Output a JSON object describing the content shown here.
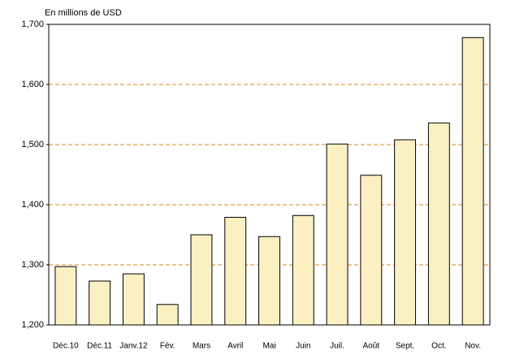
{
  "chart_data": {
    "type": "bar",
    "y_axis_label": "En millions de USD",
    "categories": [
      "Déc.10",
      "Déc.11",
      "Janv.12",
      "Fév.",
      "Mars",
      "Avril",
      "Mai",
      "Juin",
      "Juil.",
      "Août",
      "Sept.",
      "Oct.",
      "Nov."
    ],
    "values": [
      1297,
      1273,
      1285,
      1234,
      1350,
      1379,
      1347,
      1382,
      1501,
      1449,
      1508,
      1536,
      1678
    ],
    "color": "#fbf0c2",
    "ylim": [
      1200,
      1700
    ],
    "yticks": [
      {
        "value": 1200,
        "label": "1,200"
      },
      {
        "value": 1300,
        "label": "1,300"
      },
      {
        "value": 1400,
        "label": "1,400"
      },
      {
        "value": 1500,
        "label": "1,500"
      },
      {
        "value": 1600,
        "label": "1,600"
      },
      {
        "value": 1700,
        "label": "1,700"
      }
    ],
    "grid": true,
    "grid_color": "#d9861f"
  }
}
